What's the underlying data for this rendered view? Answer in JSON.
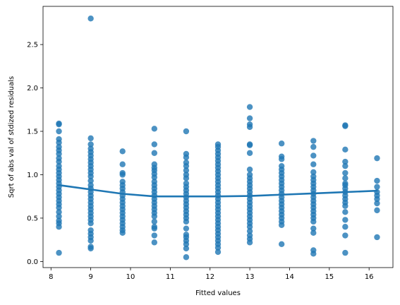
{
  "chart_data": {
    "type": "scatter",
    "title": "",
    "xlabel": "Fitted values",
    "ylabel": "Sqrt of abs val of stdized residuals",
    "xlim": [
      7.8,
      16.6
    ],
    "ylim": [
      -0.07,
      2.94
    ],
    "xticks": [
      8,
      9,
      10,
      11,
      12,
      13,
      14,
      15,
      16
    ],
    "yticks": [
      0.0,
      0.5,
      1.0,
      1.5,
      2.0,
      2.5
    ],
    "ytick_labels": [
      "0.0",
      "0.5",
      "1.0",
      "1.5",
      "2.0",
      "2.5"
    ],
    "grid": false,
    "legend": "none",
    "colors": {
      "points": "#1f77b4",
      "line": "#1f77b4"
    },
    "series": [
      {
        "type": "scatter",
        "points": [
          [
            8.2,
            1.59
          ],
          [
            8.2,
            1.58
          ],
          [
            8.2,
            1.5
          ],
          [
            8.2,
            1.41
          ],
          [
            8.2,
            1.37
          ],
          [
            8.2,
            1.32
          ],
          [
            8.2,
            1.28
          ],
          [
            8.2,
            1.24
          ],
          [
            8.2,
            1.19
          ],
          [
            8.2,
            1.15
          ],
          [
            8.2,
            1.1
          ],
          [
            8.2,
            1.06
          ],
          [
            8.2,
            1.02
          ],
          [
            8.2,
            0.98
          ],
          [
            8.2,
            0.94
          ],
          [
            8.2,
            0.9
          ],
          [
            8.2,
            0.86
          ],
          [
            8.2,
            0.82
          ],
          [
            8.2,
            0.78
          ],
          [
            8.2,
            0.74
          ],
          [
            8.2,
            0.7
          ],
          [
            8.2,
            0.66
          ],
          [
            8.2,
            0.62
          ],
          [
            8.2,
            0.57
          ],
          [
            8.2,
            0.52
          ],
          [
            8.2,
            0.47
          ],
          [
            8.2,
            0.44
          ],
          [
            8.2,
            0.4
          ],
          [
            8.2,
            0.1
          ],
          [
            9.0,
            2.8
          ],
          [
            9.0,
            1.42
          ],
          [
            9.0,
            1.35
          ],
          [
            9.0,
            1.3
          ],
          [
            9.0,
            1.26
          ],
          [
            9.0,
            1.22
          ],
          [
            9.0,
            1.18
          ],
          [
            9.0,
            1.14
          ],
          [
            9.0,
            1.1
          ],
          [
            9.0,
            1.06
          ],
          [
            9.0,
            1.02
          ],
          [
            9.0,
            0.98
          ],
          [
            9.0,
            0.93
          ],
          [
            9.0,
            0.88
          ],
          [
            9.0,
            0.84
          ],
          [
            9.0,
            0.8
          ],
          [
            9.0,
            0.76
          ],
          [
            9.0,
            0.72
          ],
          [
            9.0,
            0.68
          ],
          [
            9.0,
            0.64
          ],
          [
            9.0,
            0.6
          ],
          [
            9.0,
            0.56
          ],
          [
            9.0,
            0.52
          ],
          [
            9.0,
            0.48
          ],
          [
            9.0,
            0.44
          ],
          [
            9.0,
            0.36
          ],
          [
            9.0,
            0.32
          ],
          [
            9.0,
            0.28
          ],
          [
            9.0,
            0.24
          ],
          [
            9.0,
            0.17
          ],
          [
            9.0,
            0.15
          ],
          [
            9.8,
            1.27
          ],
          [
            9.8,
            1.12
          ],
          [
            9.8,
            1.02
          ],
          [
            9.8,
            1.0
          ],
          [
            9.8,
            0.92
          ],
          [
            9.8,
            0.88
          ],
          [
            9.8,
            0.84
          ],
          [
            9.8,
            0.8
          ],
          [
            9.8,
            0.76
          ],
          [
            9.8,
            0.72
          ],
          [
            9.8,
            0.68
          ],
          [
            9.8,
            0.64
          ],
          [
            9.8,
            0.6
          ],
          [
            9.8,
            0.56
          ],
          [
            9.8,
            0.52
          ],
          [
            9.8,
            0.48
          ],
          [
            9.8,
            0.44
          ],
          [
            9.8,
            0.4
          ],
          [
            9.8,
            0.36
          ],
          [
            9.8,
            0.33
          ],
          [
            10.6,
            1.53
          ],
          [
            10.6,
            1.35
          ],
          [
            10.6,
            1.25
          ],
          [
            10.6,
            1.12
          ],
          [
            10.6,
            1.08
          ],
          [
            10.6,
            1.05
          ],
          [
            10.6,
            1.01
          ],
          [
            10.6,
            0.97
          ],
          [
            10.6,
            0.92
          ],
          [
            10.6,
            0.88
          ],
          [
            10.6,
            0.84
          ],
          [
            10.6,
            0.8
          ],
          [
            10.6,
            0.76
          ],
          [
            10.6,
            0.72
          ],
          [
            10.6,
            0.68
          ],
          [
            10.6,
            0.64
          ],
          [
            10.6,
            0.6
          ],
          [
            10.6,
            0.56
          ],
          [
            10.6,
            0.52
          ],
          [
            10.6,
            0.46
          ],
          [
            10.6,
            0.4
          ],
          [
            10.6,
            0.38
          ],
          [
            10.6,
            0.3
          ],
          [
            10.6,
            0.22
          ],
          [
            11.4,
            1.5
          ],
          [
            11.4,
            1.24
          ],
          [
            11.4,
            1.2
          ],
          [
            11.4,
            1.14
          ],
          [
            11.4,
            1.1
          ],
          [
            11.4,
            1.05
          ],
          [
            11.4,
            1.0
          ],
          [
            11.4,
            0.96
          ],
          [
            11.4,
            0.9
          ],
          [
            11.4,
            0.86
          ],
          [
            11.4,
            0.82
          ],
          [
            11.4,
            0.78
          ],
          [
            11.4,
            0.74
          ],
          [
            11.4,
            0.7
          ],
          [
            11.4,
            0.66
          ],
          [
            11.4,
            0.62
          ],
          [
            11.4,
            0.58
          ],
          [
            11.4,
            0.54
          ],
          [
            11.4,
            0.5
          ],
          [
            11.4,
            0.46
          ],
          [
            11.4,
            0.38
          ],
          [
            11.4,
            0.31
          ],
          [
            11.4,
            0.28
          ],
          [
            11.4,
            0.24
          ],
          [
            11.4,
            0.2
          ],
          [
            11.4,
            0.15
          ],
          [
            11.4,
            0.05
          ],
          [
            12.2,
            1.35
          ],
          [
            12.2,
            1.32
          ],
          [
            12.2,
            1.28
          ],
          [
            12.2,
            1.24
          ],
          [
            12.2,
            1.2
          ],
          [
            12.2,
            1.16
          ],
          [
            12.2,
            1.12
          ],
          [
            12.2,
            1.08
          ],
          [
            12.2,
            1.04
          ],
          [
            12.2,
            1.0
          ],
          [
            12.2,
            0.96
          ],
          [
            12.2,
            0.92
          ],
          [
            12.2,
            0.88
          ],
          [
            12.2,
            0.84
          ],
          [
            12.2,
            0.8
          ],
          [
            12.2,
            0.76
          ],
          [
            12.2,
            0.72
          ],
          [
            12.2,
            0.68
          ],
          [
            12.2,
            0.64
          ],
          [
            12.2,
            0.6
          ],
          [
            12.2,
            0.56
          ],
          [
            12.2,
            0.52
          ],
          [
            12.2,
            0.48
          ],
          [
            12.2,
            0.44
          ],
          [
            12.2,
            0.4
          ],
          [
            12.2,
            0.36
          ],
          [
            12.2,
            0.32
          ],
          [
            12.2,
            0.28
          ],
          [
            12.2,
            0.24
          ],
          [
            12.2,
            0.2
          ],
          [
            12.2,
            0.16
          ],
          [
            12.2,
            0.11
          ],
          [
            13.0,
            1.78
          ],
          [
            13.0,
            1.65
          ],
          [
            13.0,
            1.58
          ],
          [
            13.0,
            1.55
          ],
          [
            13.0,
            1.35
          ],
          [
            13.0,
            1.34
          ],
          [
            13.0,
            1.25
          ],
          [
            13.0,
            1.06
          ],
          [
            13.0,
            1.0
          ],
          [
            13.0,
            0.96
          ],
          [
            13.0,
            0.92
          ],
          [
            13.0,
            0.88
          ],
          [
            13.0,
            0.84
          ],
          [
            13.0,
            0.8
          ],
          [
            13.0,
            0.76
          ],
          [
            13.0,
            0.72
          ],
          [
            13.0,
            0.68
          ],
          [
            13.0,
            0.64
          ],
          [
            13.0,
            0.6
          ],
          [
            13.0,
            0.56
          ],
          [
            13.0,
            0.52
          ],
          [
            13.0,
            0.48
          ],
          [
            13.0,
            0.44
          ],
          [
            13.0,
            0.4
          ],
          [
            13.0,
            0.35
          ],
          [
            13.0,
            0.3
          ],
          [
            13.0,
            0.26
          ],
          [
            13.0,
            0.22
          ],
          [
            13.8,
            1.36
          ],
          [
            13.8,
            1.21
          ],
          [
            13.8,
            1.18
          ],
          [
            13.8,
            1.1
          ],
          [
            13.8,
            1.06
          ],
          [
            13.8,
            1.02
          ],
          [
            13.8,
            0.98
          ],
          [
            13.8,
            0.94
          ],
          [
            13.8,
            0.9
          ],
          [
            13.8,
            0.86
          ],
          [
            13.8,
            0.82
          ],
          [
            13.8,
            0.78
          ],
          [
            13.8,
            0.74
          ],
          [
            13.8,
            0.7
          ],
          [
            13.8,
            0.66
          ],
          [
            13.8,
            0.62
          ],
          [
            13.8,
            0.58
          ],
          [
            13.8,
            0.54
          ],
          [
            13.8,
            0.5
          ],
          [
            13.8,
            0.46
          ],
          [
            13.8,
            0.42
          ],
          [
            13.8,
            0.2
          ],
          [
            14.6,
            1.39
          ],
          [
            14.6,
            1.32
          ],
          [
            14.6,
            1.22
          ],
          [
            14.6,
            1.12
          ],
          [
            14.6,
            1.03
          ],
          [
            14.6,
            0.98
          ],
          [
            14.6,
            0.94
          ],
          [
            14.6,
            0.9
          ],
          [
            14.6,
            0.86
          ],
          [
            14.6,
            0.82
          ],
          [
            14.6,
            0.78
          ],
          [
            14.6,
            0.74
          ],
          [
            14.6,
            0.7
          ],
          [
            14.6,
            0.66
          ],
          [
            14.6,
            0.62
          ],
          [
            14.6,
            0.58
          ],
          [
            14.6,
            0.54
          ],
          [
            14.6,
            0.5
          ],
          [
            14.6,
            0.46
          ],
          [
            14.6,
            0.38
          ],
          [
            14.6,
            0.33
          ],
          [
            14.6,
            0.13
          ],
          [
            14.6,
            0.09
          ],
          [
            15.4,
            1.57
          ],
          [
            15.4,
            1.56
          ],
          [
            15.4,
            1.29
          ],
          [
            15.4,
            1.15
          ],
          [
            15.4,
            1.1
          ],
          [
            15.4,
            1.02
          ],
          [
            15.4,
            0.96
          ],
          [
            15.4,
            0.9
          ],
          [
            15.4,
            0.88
          ],
          [
            15.4,
            0.84
          ],
          [
            15.4,
            0.8
          ],
          [
            15.4,
            0.76
          ],
          [
            15.4,
            0.72
          ],
          [
            15.4,
            0.68
          ],
          [
            15.4,
            0.64
          ],
          [
            15.4,
            0.57
          ],
          [
            15.4,
            0.48
          ],
          [
            15.4,
            0.4
          ],
          [
            15.4,
            0.3
          ],
          [
            15.4,
            0.1
          ],
          [
            16.2,
            1.19
          ],
          [
            16.2,
            0.93
          ],
          [
            16.2,
            0.86
          ],
          [
            16.2,
            0.8
          ],
          [
            16.2,
            0.76
          ],
          [
            16.2,
            0.72
          ],
          [
            16.2,
            0.67
          ],
          [
            16.2,
            0.59
          ],
          [
            16.2,
            0.28
          ]
        ]
      },
      {
        "type": "line",
        "points": [
          [
            8.2,
            0.88
          ],
          [
            9.0,
            0.83
          ],
          [
            9.8,
            0.78
          ],
          [
            10.6,
            0.75
          ],
          [
            11.4,
            0.75
          ],
          [
            12.2,
            0.75
          ],
          [
            13.0,
            0.755
          ],
          [
            13.8,
            0.77
          ],
          [
            14.6,
            0.785
          ],
          [
            15.4,
            0.8
          ],
          [
            16.2,
            0.815
          ]
        ]
      }
    ]
  }
}
